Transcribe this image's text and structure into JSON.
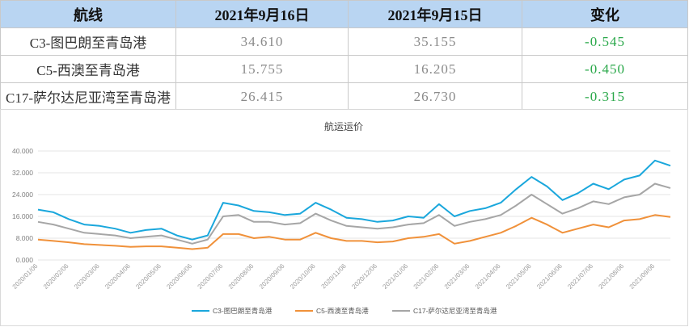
{
  "table": {
    "headers": [
      "航线",
      "2021年9月16日",
      "2021年9月15日",
      "变化"
    ],
    "rows": [
      {
        "route": "C3-图巴朗至青岛港",
        "d1": "34.610",
        "d2": "35.155",
        "change": "-0.545"
      },
      {
        "route": "C5-西澳至青岛港",
        "d1": "15.755",
        "d2": "16.205",
        "change": "-0.450"
      },
      {
        "route": "C17-萨尔达尼亚湾至青岛港",
        "d1": "26.415",
        "d2": "26.730",
        "change": "-0.315"
      }
    ]
  },
  "colors": {
    "c3": "#1aa7dc",
    "c5": "#f0913a",
    "c17": "#a6a6a6",
    "header_bg": "#b9d5f2",
    "change": "#2aa84a"
  },
  "chart_data": {
    "type": "line",
    "title": "航运运价",
    "ylim": [
      0,
      40
    ],
    "yticks": [
      "0.000",
      "8.000",
      "16.000",
      "24.000",
      "32.000",
      "40.000"
    ],
    "ytick_values": [
      0,
      8,
      16,
      24,
      32,
      40
    ],
    "grid": true,
    "legend_position": "bottom",
    "x": [
      "2020/01/06",
      "2020/01/20",
      "2020/02/06",
      "2020/02/20",
      "2020/03/06",
      "2020/03/20",
      "2020/04/06",
      "2020/04/20",
      "2020/05/06",
      "2020/05/20",
      "2020/06/06",
      "2020/06/20",
      "2020/07/06",
      "2020/07/20",
      "2020/08/06",
      "2020/08/20",
      "2020/09/06",
      "2020/09/20",
      "2020/10/06",
      "2020/10/20",
      "2020/11/06",
      "2020/11/20",
      "2020/12/06",
      "2020/12/20",
      "2021/01/06",
      "2021/01/20",
      "2021/02/06",
      "2021/02/20",
      "2021/03/06",
      "2021/03/20",
      "2021/04/06",
      "2021/04/20",
      "2021/05/06",
      "2021/05/20",
      "2021/06/06",
      "2021/06/20",
      "2021/07/06",
      "2021/07/20",
      "2021/08/06",
      "2021/08/20",
      "2021/09/06",
      "2021/09/16"
    ],
    "xticks": [
      "2020/01/06",
      "2020/02/06",
      "2020/03/06",
      "2020/04/06",
      "2020/05/06",
      "2020/06/06",
      "2020/07/06",
      "2020/08/06",
      "2020/09/06",
      "2020/10/06",
      "2020/11/06",
      "2020/12/06",
      "2021/01/06",
      "2021/02/06",
      "2021/03/06",
      "2021/04/06",
      "2021/05/06",
      "2021/06/06",
      "2021/07/06",
      "2021/08/06",
      "2021/09/06"
    ],
    "series": [
      {
        "name": "C3-图巴朗至青岛港",
        "color": "#1aa7dc",
        "values": [
          18.5,
          17.5,
          15.0,
          13.0,
          12.5,
          11.5,
          10.0,
          11.0,
          11.5,
          9.0,
          7.5,
          9.0,
          21.0,
          20.0,
          18.0,
          17.5,
          16.5,
          17.0,
          21.0,
          18.5,
          15.5,
          15.0,
          14.0,
          14.5,
          16.0,
          15.5,
          20.5,
          16.0,
          18.0,
          19.0,
          21.0,
          26.0,
          30.5,
          27.0,
          22.0,
          24.5,
          28.0,
          26.0,
          29.5,
          31.0,
          36.5,
          34.6
        ]
      },
      {
        "name": "C5-西澳至青岛港",
        "color": "#f0913a",
        "values": [
          7.5,
          7.0,
          6.5,
          5.8,
          5.5,
          5.2,
          4.8,
          5.0,
          5.0,
          4.5,
          4.0,
          4.5,
          9.5,
          9.5,
          8.0,
          8.5,
          7.5,
          7.5,
          10.0,
          8.0,
          7.0,
          7.0,
          6.5,
          6.8,
          8.0,
          8.5,
          9.5,
          6.0,
          7.0,
          8.5,
          10.0,
          12.5,
          15.5,
          13.0,
          10.0,
          11.5,
          13.0,
          12.0,
          14.5,
          15.0,
          16.5,
          15.8
        ]
      },
      {
        "name": "C17-萨尔达尼亚湾至青岛港",
        "color": "#a6a6a6",
        "values": [
          14.0,
          13.0,
          11.5,
          10.0,
          9.5,
          9.0,
          8.0,
          8.5,
          9.0,
          7.5,
          6.0,
          7.5,
          16.0,
          16.5,
          14.0,
          14.0,
          13.0,
          13.5,
          17.0,
          14.5,
          12.5,
          12.0,
          11.5,
          12.0,
          13.0,
          13.5,
          16.5,
          12.5,
          14.0,
          15.0,
          16.5,
          20.0,
          24.0,
          20.5,
          17.0,
          19.0,
          21.5,
          20.5,
          23.0,
          24.0,
          28.0,
          26.4
        ]
      }
    ]
  }
}
